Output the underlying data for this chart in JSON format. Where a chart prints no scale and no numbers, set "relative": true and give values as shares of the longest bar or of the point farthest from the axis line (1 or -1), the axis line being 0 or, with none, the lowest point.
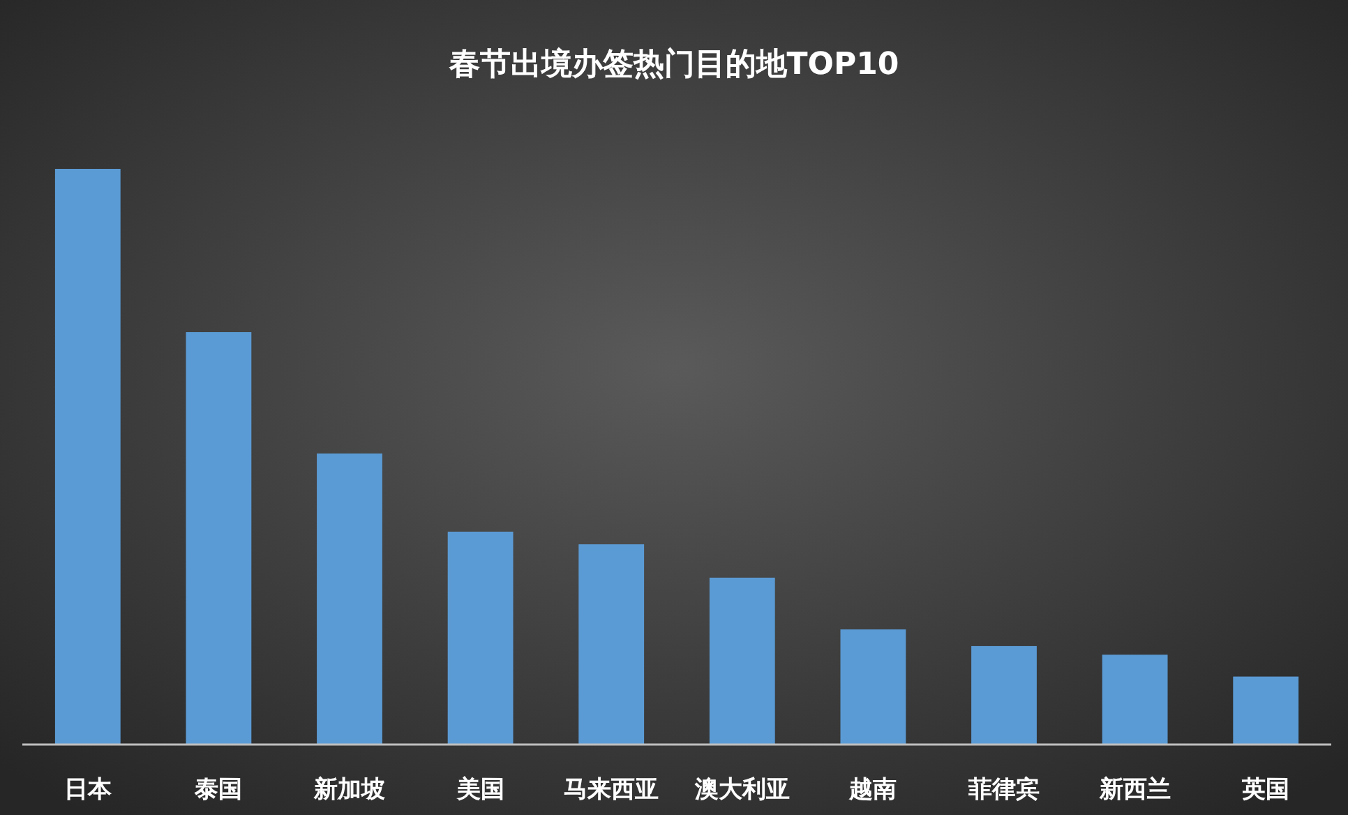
{
  "chart_data": {
    "type": "bar",
    "title": "春节出境办签热门目的地TOP10",
    "relative": true,
    "categories": [
      "日本",
      "泰国",
      "新加坡",
      "美国",
      "马来西亚",
      "澳大利亚",
      "越南",
      "菲律宾",
      "新西兰",
      "英国"
    ],
    "values": [
      1,
      0.716,
      0.505,
      0.369,
      0.347,
      0.289,
      0.199,
      0.17,
      0.155,
      0.117
    ],
    "color": "#5b9bd5"
  }
}
